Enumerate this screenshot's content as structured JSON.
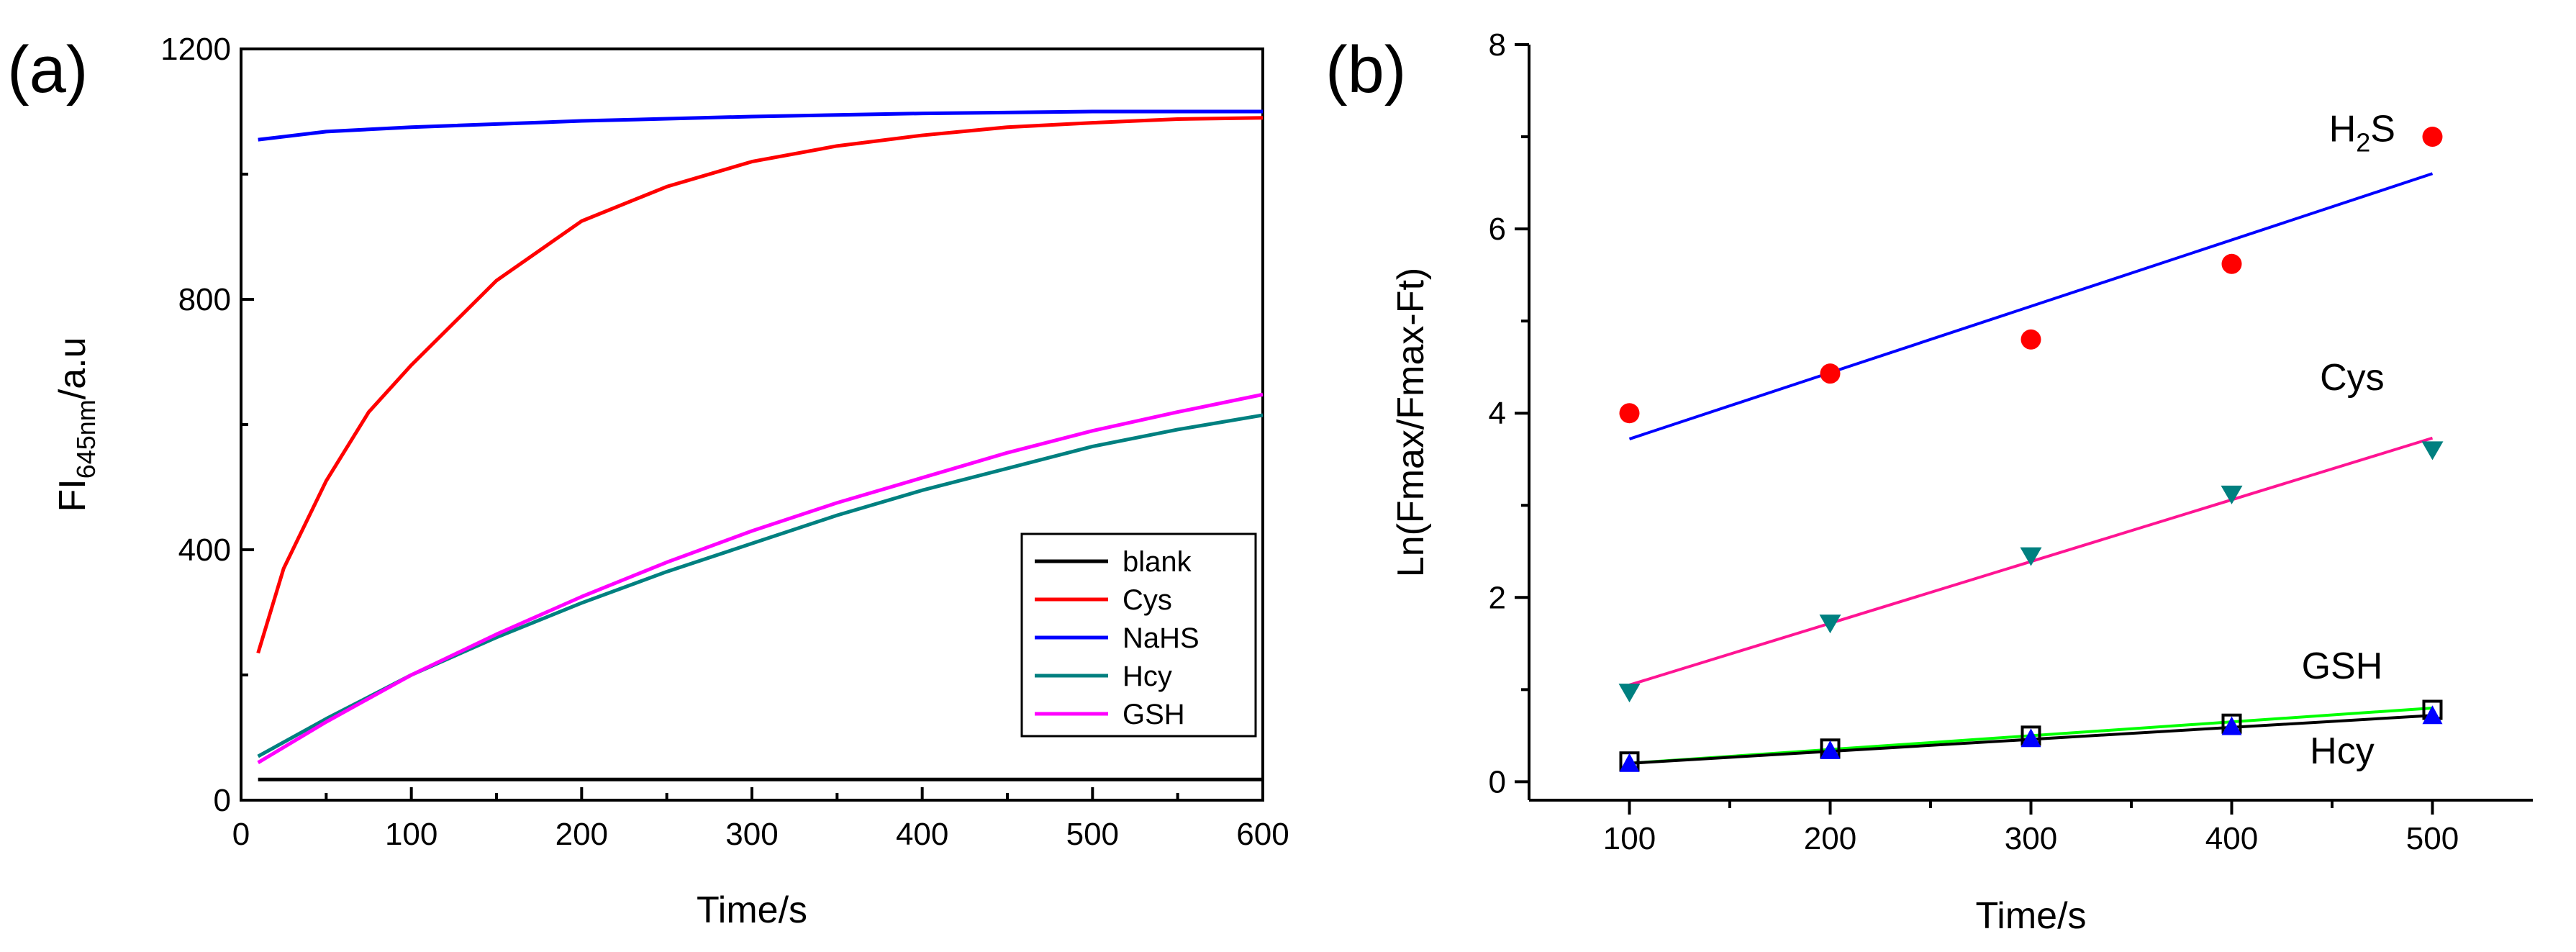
{
  "chart_data": [
    {
      "panel_label": "(a)",
      "type": "line",
      "xlabel": "Time/s",
      "ylabel": "FI",
      "ylabel_sub": "645nm",
      "ylabel_suffix": "/a.u",
      "xlim": [
        0,
        600
      ],
      "ylim": [
        0,
        1200
      ],
      "xticks": [
        0,
        100,
        200,
        300,
        400,
        500,
        600
      ],
      "yticks": [
        0,
        400,
        800,
        1200
      ],
      "legend_position": "bottom-right",
      "series": [
        {
          "name": "blank",
          "color": "#000000",
          "x": [
            10,
            100,
            200,
            300,
            400,
            500,
            600
          ],
          "y": [
            33,
            33,
            33,
            33,
            33,
            33,
            33
          ]
        },
        {
          "name": "Cys",
          "color": "#ff0000",
          "x": [
            10,
            25,
            50,
            75,
            100,
            150,
            200,
            250,
            300,
            350,
            400,
            450,
            500,
            550,
            600
          ],
          "y": [
            235,
            370,
            510,
            620,
            695,
            830,
            925,
            980,
            1020,
            1045,
            1062,
            1075,
            1082,
            1088,
            1090
          ]
        },
        {
          "name": "NaHS",
          "color": "#0000ff",
          "x": [
            10,
            50,
            100,
            200,
            300,
            400,
            500,
            600
          ],
          "y": [
            1055,
            1068,
            1075,
            1085,
            1092,
            1097,
            1100,
            1100
          ]
        },
        {
          "name": "Hcy",
          "color": "#008080",
          "x": [
            10,
            50,
            100,
            150,
            200,
            250,
            300,
            350,
            400,
            450,
            500,
            550,
            600
          ],
          "y": [
            70,
            130,
            200,
            260,
            315,
            365,
            410,
            455,
            495,
            530,
            565,
            592,
            615
          ]
        },
        {
          "name": "GSH",
          "color": "#ff00ff",
          "x": [
            10,
            50,
            100,
            150,
            200,
            250,
            300,
            350,
            400,
            450,
            500,
            550,
            600
          ],
          "y": [
            60,
            125,
            200,
            265,
            325,
            380,
            430,
            475,
            515,
            555,
            590,
            620,
            648
          ]
        }
      ]
    },
    {
      "panel_label": "(b)",
      "type": "scatter",
      "xlabel": "Time/s",
      "ylabel": "Ln(Fmax/Fmax-Ft)",
      "xlim": [
        50,
        550
      ],
      "ylim": [
        -0.2,
        8
      ],
      "xticks": [
        100,
        200,
        300,
        400,
        500
      ],
      "yticks": [
        0,
        2,
        4,
        6,
        8
      ],
      "annotations": [
        {
          "text_main": "H",
          "text_sub": "2",
          "text_rest": "S",
          "x": 465,
          "y": 6.95
        },
        {
          "text_main": "Cys",
          "text_sub": "",
          "text_rest": "",
          "x": 460,
          "y": 4.25
        },
        {
          "text_main": "GSH",
          "text_sub": "",
          "text_rest": "",
          "x": 455,
          "y": 1.12
        },
        {
          "text_main": "Hcy",
          "text_sub": "",
          "text_rest": "",
          "x": 455,
          "y": 0.2
        }
      ],
      "series": [
        {
          "marker": "circle",
          "color": "#ff0000",
          "fit_color": "#0000ff",
          "x": [
            100,
            200,
            300,
            400,
            500
          ],
          "y": [
            4.0,
            4.43,
            4.8,
            5.62,
            7.0
          ],
          "fit": [
            3.72,
            6.6
          ]
        },
        {
          "marker": "triangle-down",
          "color": "#008080",
          "fit_color": "#ff1493",
          "x": [
            100,
            200,
            300,
            400,
            500
          ],
          "y": [
            0.97,
            1.72,
            2.45,
            3.12,
            3.6
          ],
          "fit": [
            1.05,
            3.73
          ]
        },
        {
          "marker": "square",
          "color": "#000000",
          "fit_color": "#00ff00",
          "x": [
            100,
            200,
            300,
            400,
            500
          ],
          "y": [
            0.22,
            0.36,
            0.5,
            0.63,
            0.78
          ],
          "fit": [
            0.2,
            0.8
          ]
        },
        {
          "marker": "triangle-up",
          "color": "#0000ff",
          "fit_color": "#000000",
          "x": [
            100,
            200,
            300,
            400,
            500
          ],
          "y": [
            0.2,
            0.34,
            0.47,
            0.6,
            0.72
          ],
          "fit": [
            0.2,
            0.72
          ]
        }
      ]
    }
  ]
}
